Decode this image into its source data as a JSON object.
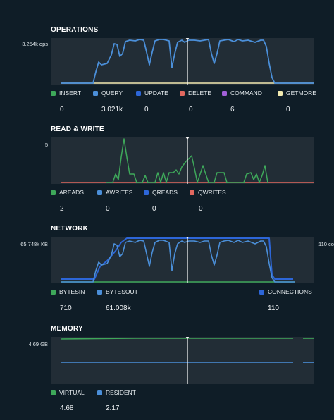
{
  "panels": {
    "operations": {
      "title": "OPERATIONS",
      "y_max_label": "3.254k ops",
      "legend": [
        {
          "label": "INSERT",
          "value": "0",
          "color": "#3ea85a"
        },
        {
          "label": "QUERY",
          "value": "3.021k",
          "color": "#4b8fd9"
        },
        {
          "label": "UPDATE",
          "value": "0",
          "color": "#2d66d8"
        },
        {
          "label": "DELETE",
          "value": "0",
          "color": "#e2685f"
        },
        {
          "label": "COMMAND",
          "value": "6",
          "color": "#a25fd8"
        },
        {
          "label": "GETMORE",
          "value": "0",
          "color": "#f2eab0"
        }
      ]
    },
    "read_write": {
      "title": "READ & WRITE",
      "y_max_label": "5",
      "legend": [
        {
          "label": "AREADS",
          "value": "2",
          "color": "#3ea85a"
        },
        {
          "label": "AWRITES",
          "value": "0",
          "color": "#4b8fd9"
        },
        {
          "label": "QREADS",
          "value": "0",
          "color": "#2d66d8"
        },
        {
          "label": "QWRITES",
          "value": "0",
          "color": "#e2685f"
        }
      ]
    },
    "network": {
      "title": "NETWORK",
      "y_max_label": "65.748k KB",
      "y_right_label": "110 co",
      "legend": [
        {
          "label": "BYTESIN",
          "value": "710",
          "color": "#3ea85a"
        },
        {
          "label": "BYTESOUT",
          "value": "61.008k",
          "color": "#4b8fd9"
        },
        {
          "label": "CONNECTIONS",
          "value": "110",
          "color": "#2d66d8"
        }
      ]
    },
    "memory": {
      "title": "MEMORY",
      "y_max_label": "4.69 GB",
      "legend": [
        {
          "label": "VIRTUAL",
          "value": "4.68",
          "color": "#3ea85a"
        },
        {
          "label": "RESIDENT",
          "value": "2.17",
          "color": "#4b8fd9"
        }
      ]
    }
  }
}
